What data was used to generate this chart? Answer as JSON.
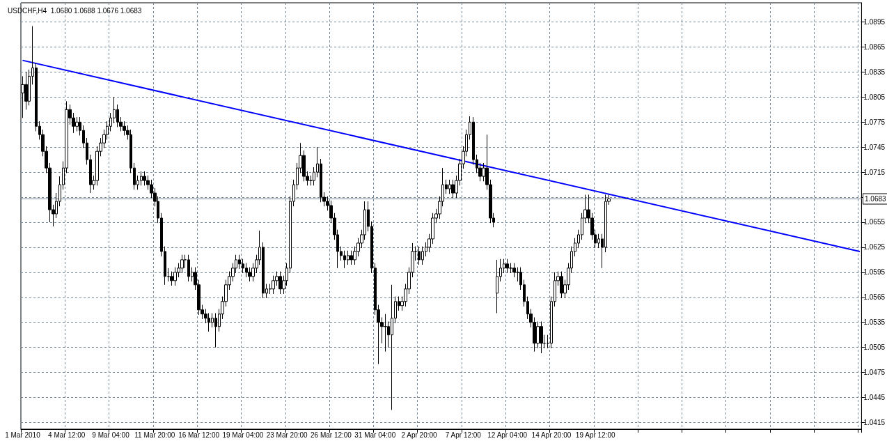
{
  "chart_data": {
    "type": "candlestick",
    "title": "USDCHF,H4  1.0680 1.0688 1.0676 1.0683",
    "categories": [
      "1 Mar 2010",
      null,
      null,
      null,
      null,
      null,
      null,
      null,
      null,
      null,
      null,
      null,
      null,
      "4 Mar 12:00",
      null,
      null,
      null,
      null,
      null,
      null,
      null,
      null,
      null,
      null,
      null,
      null,
      "9 Mar 04:00",
      null,
      null,
      null,
      null,
      null,
      null,
      null,
      null,
      null,
      null,
      null,
      null,
      "11 Mar 20:00",
      null,
      null,
      null,
      null,
      null,
      null,
      null,
      null,
      null,
      null,
      null,
      null,
      "16 Mar 12:00",
      null,
      null,
      null,
      null,
      null,
      null,
      null,
      null,
      null,
      null,
      null,
      null,
      "19 Mar 04:00",
      null,
      null,
      null,
      null,
      null,
      null,
      null,
      null,
      null,
      null,
      null,
      null,
      "23 Mar 20:00",
      null,
      null,
      null,
      null,
      null,
      null,
      null,
      null,
      null,
      null,
      null,
      null,
      "26 Mar 12:00",
      null,
      null,
      null,
      null,
      null,
      null,
      null,
      null,
      null,
      null,
      null,
      null,
      "31 Mar 04:00",
      null,
      null,
      null,
      null,
      null,
      null,
      null,
      null,
      null,
      null,
      null,
      null,
      "2 Apr 20:00",
      null,
      null,
      null,
      null,
      null,
      null,
      null,
      null,
      null,
      null,
      null,
      null,
      "7 Apr 12:00",
      null,
      null,
      null,
      null,
      null,
      null,
      null,
      null,
      null,
      null,
      null,
      null,
      "12 Apr 04:00",
      null,
      null,
      null,
      null,
      null,
      null,
      null,
      null,
      null,
      null,
      null,
      null,
      "14 Apr 20:00",
      null,
      null,
      null,
      null,
      null,
      null,
      null,
      null,
      null,
      null,
      null,
      null,
      "19 Apr 12:00",
      null,
      null,
      null,
      null,
      null,
      null,
      null,
      null,
      null,
      null,
      null,
      null,
      null,
      null,
      null,
      null,
      null,
      null,
      null,
      null,
      null,
      null,
      null,
      null,
      null,
      null,
      null,
      null,
      null,
      null,
      null,
      null,
      null,
      null,
      null,
      null,
      null,
      null,
      null,
      null,
      null,
      null,
      null,
      null,
      null,
      null,
      null,
      null,
      null,
      null,
      null,
      null,
      null,
      null,
      null,
      null,
      null,
      null,
      null,
      null,
      null,
      null,
      null,
      null,
      null,
      null,
      null,
      null,
      null,
      null,
      null,
      null,
      null,
      null,
      null,
      null,
      null,
      null
    ],
    "series": [
      {
        "type": "candlestick",
        "color": "#000000",
        "ohlc": [
          [
            1.081,
            1.083,
            1.078,
            1.082
          ],
          [
            1.082,
            1.0835,
            1.079,
            1.08
          ],
          [
            1.08,
            1.0838,
            1.0795,
            1.083
          ],
          [
            1.083,
            1.089,
            1.082,
            1.084
          ],
          [
            1.084,
            1.0846,
            1.0764,
            1.077
          ],
          [
            1.077,
            1.0776,
            1.0754,
            1.076
          ],
          [
            1.076,
            1.0766,
            1.0734,
            1.074
          ],
          [
            1.074,
            1.0746,
            1.0714,
            1.072
          ],
          [
            1.072,
            1.0726,
            1.0655,
            1.067
          ],
          [
            1.067,
            1.0676,
            1.065,
            1.0665
          ],
          [
            1.0665,
            1.069,
            1.066,
            1.068
          ],
          [
            1.068,
            1.071,
            1.0674,
            1.07
          ],
          [
            1.07,
            1.0728,
            1.0694,
            1.072
          ],
          [
            1.072,
            1.08,
            1.0714,
            1.079
          ],
          [
            1.079,
            1.0796,
            1.0772,
            1.078
          ],
          [
            1.078,
            1.0786,
            1.0762,
            1.077
          ],
          [
            1.077,
            1.0781,
            1.0764,
            1.0775
          ],
          [
            1.0775,
            1.0781,
            1.0759,
            1.0765
          ],
          [
            1.0765,
            1.0771,
            1.0744,
            1.075
          ],
          [
            1.075,
            1.0756,
            1.0724,
            1.073
          ],
          [
            1.073,
            1.0736,
            1.069,
            1.07
          ],
          [
            1.07,
            1.0711,
            1.0694,
            1.0705
          ],
          [
            1.0705,
            1.0746,
            1.0699,
            1.074
          ],
          [
            1.074,
            1.0756,
            1.0734,
            1.075
          ],
          [
            1.075,
            1.0766,
            1.0744,
            1.076
          ],
          [
            1.076,
            1.0776,
            1.0754,
            1.077
          ],
          [
            1.077,
            1.0786,
            1.0764,
            1.078
          ],
          [
            1.078,
            1.0805,
            1.0774,
            1.079
          ],
          [
            1.079,
            1.0796,
            1.0769,
            1.0775
          ],
          [
            1.0775,
            1.0781,
            1.0764,
            1.077
          ],
          [
            1.077,
            1.0776,
            1.0759,
            1.0765
          ],
          [
            1.0765,
            1.0771,
            1.0754,
            1.076
          ],
          [
            1.076,
            1.0766,
            1.0714,
            1.072
          ],
          [
            1.072,
            1.0726,
            1.0694,
            1.07
          ],
          [
            1.07,
            1.0711,
            1.0694,
            1.0705
          ],
          [
            1.0705,
            1.0716,
            1.0699,
            1.071
          ],
          [
            1.071,
            1.0716,
            1.0699,
            1.0705
          ],
          [
            1.0705,
            1.0711,
            1.0694,
            1.07
          ],
          [
            1.07,
            1.0706,
            1.0684,
            1.069
          ],
          [
            1.069,
            1.0696,
            1.0674,
            1.068
          ],
          [
            1.068,
            1.0686,
            1.0654,
            1.066
          ],
          [
            1.066,
            1.0666,
            1.0614,
            1.062
          ],
          [
            1.062,
            1.0626,
            1.058,
            1.059
          ],
          [
            1.059,
            1.06,
            1.0584,
            1.059
          ],
          [
            1.059,
            1.0596,
            1.0579,
            1.0585
          ],
          [
            1.0585,
            1.0601,
            1.0579,
            1.0595
          ],
          [
            1.0595,
            1.0606,
            1.0589,
            1.06
          ],
          [
            1.06,
            1.0616,
            1.0594,
            1.061
          ],
          [
            1.061,
            1.0616,
            1.06,
            1.061
          ],
          [
            1.061,
            1.0616,
            1.0584,
            1.059
          ],
          [
            1.059,
            1.0601,
            1.0584,
            1.0595
          ],
          [
            1.0595,
            1.0601,
            1.0574,
            1.058
          ],
          [
            1.058,
            1.0586,
            1.0544,
            1.055
          ],
          [
            1.055,
            1.0556,
            1.0539,
            1.0545
          ],
          [
            1.0545,
            1.0551,
            1.0534,
            1.054
          ],
          [
            1.054,
            1.0546,
            1.0524,
            1.0535
          ],
          [
            1.0535,
            1.0546,
            1.0529,
            1.054
          ],
          [
            1.054,
            1.0546,
            1.0505,
            1.053
          ],
          [
            1.053,
            1.0551,
            1.0524,
            1.0545
          ],
          [
            1.0545,
            1.0566,
            1.0539,
            1.056
          ],
          [
            1.056,
            1.0586,
            1.0554,
            1.058
          ],
          [
            1.058,
            1.0596,
            1.0574,
            1.059
          ],
          [
            1.059,
            1.0606,
            1.0584,
            1.06
          ],
          [
            1.06,
            1.0616,
            1.0594,
            1.061
          ],
          [
            1.061,
            1.0616,
            1.0599,
            1.0605
          ],
          [
            1.0605,
            1.0611,
            1.0594,
            1.06
          ],
          [
            1.06,
            1.0606,
            1.0589,
            1.0595
          ],
          [
            1.0595,
            1.0601,
            1.0584,
            1.059
          ],
          [
            1.059,
            1.0606,
            1.0584,
            1.06
          ],
          [
            1.06,
            1.0616,
            1.0594,
            1.061
          ],
          [
            1.061,
            1.0645,
            1.0604,
            1.0625
          ],
          [
            1.0625,
            1.0631,
            1.0564,
            1.057
          ],
          [
            1.057,
            1.0581,
            1.0564,
            1.0575
          ],
          [
            1.0575,
            1.0581,
            1.0569,
            1.0575
          ],
          [
            1.0575,
            1.0591,
            1.0569,
            1.0585
          ],
          [
            1.0585,
            1.0596,
            1.0579,
            1.059
          ],
          [
            1.059,
            1.0596,
            1.0569,
            1.0575
          ],
          [
            1.0575,
            1.0591,
            1.0569,
            1.0585
          ],
          [
            1.0585,
            1.0606,
            1.0579,
            1.06
          ],
          [
            1.06,
            1.0686,
            1.0594,
            1.068
          ],
          [
            1.068,
            1.0706,
            1.0674,
            1.07
          ],
          [
            1.07,
            1.0726,
            1.0694,
            1.072
          ],
          [
            1.072,
            1.075,
            1.0714,
            1.0735
          ],
          [
            1.0735,
            1.0741,
            1.0704,
            1.071
          ],
          [
            1.071,
            1.0716,
            1.0699,
            1.0705
          ],
          [
            1.0705,
            1.0711,
            1.0699,
            1.0705
          ],
          [
            1.0705,
            1.0721,
            1.0699,
            1.0715
          ],
          [
            1.0715,
            1.0745,
            1.0709,
            1.0725
          ],
          [
            1.0725,
            1.0731,
            1.0679,
            1.0685
          ],
          [
            1.0685,
            1.0691,
            1.0674,
            1.068
          ],
          [
            1.068,
            1.0686,
            1.0669,
            1.0675
          ],
          [
            1.0675,
            1.0681,
            1.0654,
            1.066
          ],
          [
            1.066,
            1.0666,
            1.0634,
            1.064
          ],
          [
            1.064,
            1.0646,
            1.06,
            1.062
          ],
          [
            1.062,
            1.0626,
            1.0609,
            1.0615
          ],
          [
            1.0615,
            1.0621,
            1.06,
            1.061
          ],
          [
            1.061,
            1.0621,
            1.0604,
            1.0615
          ],
          [
            1.0615,
            1.0621,
            1.0604,
            1.061
          ],
          [
            1.061,
            1.0626,
            1.0604,
            1.062
          ],
          [
            1.062,
            1.0636,
            1.0614,
            1.063
          ],
          [
            1.063,
            1.0646,
            1.0624,
            1.064
          ],
          [
            1.064,
            1.068,
            1.0634,
            1.067
          ],
          [
            1.067,
            1.068,
            1.0644,
            1.065
          ],
          [
            1.065,
            1.0656,
            1.0594,
            1.06
          ],
          [
            1.06,
            1.0606,
            1.0544,
            1.055
          ],
          [
            1.055,
            1.0556,
            1.0485,
            1.0535
          ],
          [
            1.0535,
            1.0541,
            1.051,
            1.053
          ],
          [
            1.053,
            1.0545,
            1.05,
            1.053
          ],
          [
            1.053,
            1.0536,
            1.0505,
            1.052
          ],
          [
            1.052,
            1.058,
            1.043,
            1.054
          ],
          [
            1.054,
            1.0566,
            1.0534,
            1.056
          ],
          [
            1.056,
            1.0566,
            1.0549,
            1.0555
          ],
          [
            1.0555,
            1.0566,
            1.0549,
            1.056
          ],
          [
            1.056,
            1.0581,
            1.0554,
            1.0575
          ],
          [
            1.0575,
            1.0601,
            1.0569,
            1.0595
          ],
          [
            1.0595,
            1.063,
            1.0589,
            1.062
          ],
          [
            1.062,
            1.0626,
            1.0609,
            1.062
          ],
          [
            1.062,
            1.0626,
            1.0604,
            1.061
          ],
          [
            1.061,
            1.0626,
            1.0604,
            1.062
          ],
          [
            1.062,
            1.0631,
            1.0614,
            1.0625
          ],
          [
            1.0625,
            1.0641,
            1.0619,
            1.0635
          ],
          [
            1.0635,
            1.0666,
            1.0629,
            1.066
          ],
          [
            1.066,
            1.0671,
            1.0654,
            1.0665
          ],
          [
            1.0665,
            1.0686,
            1.0659,
            1.068
          ],
          [
            1.068,
            1.072,
            1.0674,
            1.07
          ],
          [
            1.07,
            1.0706,
            1.0689,
            1.0695
          ],
          [
            1.0695,
            1.0706,
            1.0689,
            1.07
          ],
          [
            1.07,
            1.0706,
            1.0684,
            1.069
          ],
          [
            1.069,
            1.0711,
            1.0684,
            1.0705
          ],
          [
            1.0705,
            1.0731,
            1.0699,
            1.0725
          ],
          [
            1.0725,
            1.0746,
            1.0719,
            1.074
          ],
          [
            1.074,
            1.0766,
            1.0734,
            1.076
          ],
          [
            1.076,
            1.0782,
            1.0754,
            1.0775
          ],
          [
            1.0775,
            1.0781,
            1.0724,
            1.073
          ],
          [
            1.073,
            1.0736,
            1.0714,
            1.072
          ],
          [
            1.072,
            1.0726,
            1.0704,
            1.071
          ],
          [
            1.071,
            1.0726,
            1.0704,
            1.072
          ],
          [
            1.072,
            1.076,
            1.0694,
            1.07
          ],
          [
            1.07,
            1.0706,
            1.0654,
            1.066
          ],
          [
            1.066,
            1.0666,
            1.0649,
            1.0655
          ],
          [
            1.057,
            1.061,
            1.0546,
            1.059
          ],
          [
            1.059,
            1.0611,
            1.0584,
            1.06
          ],
          [
            1.06,
            1.0611,
            1.0594,
            1.0605
          ],
          [
            1.0605,
            1.0611,
            1.0594,
            1.06
          ],
          [
            1.06,
            1.0606,
            1.0594,
            1.06
          ],
          [
            1.06,
            1.0606,
            1.0589,
            1.0595
          ],
          [
            1.0595,
            1.0601,
            1.0584,
            1.0595
          ],
          [
            1.0595,
            1.0601,
            1.0574,
            1.058
          ],
          [
            1.058,
            1.0586,
            1.0554,
            1.056
          ],
          [
            1.056,
            1.0566,
            1.0539,
            1.0545
          ],
          [
            1.0545,
            1.0551,
            1.0529,
            1.0535
          ],
          [
            1.0535,
            1.0541,
            1.05,
            1.051
          ],
          [
            1.051,
            1.0536,
            1.0504,
            1.053
          ],
          [
            1.053,
            1.0536,
            1.0498,
            1.051
          ],
          [
            1.051,
            1.052,
            1.0504,
            1.051
          ],
          [
            1.051,
            1.052,
            1.0504,
            1.051
          ],
          [
            1.051,
            1.0566,
            1.0504,
            1.056
          ],
          [
            1.056,
            1.0595,
            1.0554,
            1.0585
          ],
          [
            1.0585,
            1.0596,
            1.0579,
            1.059
          ],
          [
            1.059,
            1.0596,
            1.0564,
            1.057
          ],
          [
            1.057,
            1.0586,
            1.0564,
            1.058
          ],
          [
            1.058,
            1.0606,
            1.0574,
            1.06
          ],
          [
            1.06,
            1.0626,
            1.0594,
            1.062
          ],
          [
            1.062,
            1.0636,
            1.0614,
            1.063
          ],
          [
            1.063,
            1.0646,
            1.0624,
            1.064
          ],
          [
            1.064,
            1.0666,
            1.0634,
            1.066
          ],
          [
            1.066,
            1.0688,
            1.0654,
            1.067
          ],
          [
            1.067,
            1.0688,
            1.0654,
            1.066
          ],
          [
            1.066,
            1.0666,
            1.0634,
            1.064
          ],
          [
            1.064,
            1.0646,
            1.0624,
            1.063
          ],
          [
            1.063,
            1.0641,
            1.0624,
            1.0635
          ],
          [
            1.0635,
            1.0641,
            1.06,
            1.0625
          ],
          [
            1.0625,
            1.0688,
            1.0619,
            1.068
          ],
          [
            1.068,
            1.0688,
            1.0676,
            1.0683
          ],
          null,
          null,
          null,
          null,
          null,
          null,
          null,
          null,
          null,
          null,
          null,
          null,
          null,
          null,
          null,
          null,
          null,
          null,
          null,
          null,
          null,
          null,
          null,
          null,
          null,
          null,
          null,
          null,
          null,
          null,
          null,
          null,
          null,
          null,
          null,
          null,
          null,
          null,
          null,
          null,
          null,
          null,
          null,
          null,
          null,
          null,
          null,
          null,
          null,
          null,
          null,
          null,
          null,
          null,
          null,
          null,
          null,
          null,
          null,
          null,
          null,
          null,
          null,
          null,
          null,
          null,
          null,
          null,
          null,
          null,
          null,
          null,
          null,
          null
        ]
      },
      {
        "type": "line",
        "color": "#0000ff",
        "values": [
          1.0849,
          null,
          null,
          null,
          null,
          null,
          null,
          null,
          null,
          null,
          null,
          null,
          null,
          null,
          null,
          null,
          null,
          null,
          null,
          null,
          null,
          null,
          null,
          null,
          null,
          null,
          null,
          null,
          null,
          null,
          null,
          null,
          null,
          null,
          null,
          null,
          null,
          null,
          null,
          null,
          null,
          null,
          null,
          null,
          null,
          null,
          null,
          null,
          null,
          null,
          null,
          null,
          null,
          null,
          null,
          null,
          null,
          null,
          null,
          null,
          null,
          null,
          null,
          null,
          null,
          null,
          null,
          null,
          null,
          null,
          null,
          null,
          null,
          null,
          null,
          null,
          null,
          null,
          null,
          null,
          null,
          null,
          null,
          null,
          null,
          null,
          null,
          null,
          null,
          null,
          null,
          null,
          null,
          null,
          null,
          null,
          null,
          null,
          null,
          null,
          null,
          null,
          null,
          null,
          null,
          null,
          null,
          null,
          null,
          null,
          null,
          null,
          null,
          null,
          null,
          null,
          null,
          null,
          null,
          null,
          null,
          null,
          null,
          null,
          null,
          null,
          null,
          null,
          null,
          null,
          null,
          null,
          null,
          null,
          null,
          null,
          null,
          null,
          null,
          null,
          null,
          null,
          null,
          null,
          null,
          null,
          null,
          null,
          null,
          null,
          null,
          null,
          null,
          null,
          null,
          null,
          null,
          null,
          null,
          null,
          null,
          null,
          null,
          null,
          null,
          null,
          null,
          null,
          null,
          null,
          null,
          null,
          null,
          null,
          null,
          null,
          null,
          null,
          null,
          null,
          null,
          null,
          null,
          null,
          null,
          null,
          null,
          null,
          null,
          null,
          null,
          null,
          null,
          null,
          null,
          null,
          null,
          null,
          null,
          null,
          null,
          null,
          null,
          null,
          null,
          null,
          null,
          null,
          null,
          null,
          null,
          null,
          null,
          null,
          null,
          null,
          null,
          null,
          null,
          null,
          null,
          null,
          null,
          null,
          null,
          null,
          null,
          null,
          null,
          null,
          null,
          null,
          null,
          null,
          null,
          null,
          null,
          null,
          null,
          null,
          null,
          null,
          null,
          null,
          null,
          null,
          null,
          1.062
        ]
      }
    ],
    "ylim": [
      1.0407,
      1.0918
    ],
    "yticks": [
      1.0415,
      1.0445,
      1.0475,
      1.0505,
      1.0535,
      1.0565,
      1.0595,
      1.0625,
      1.0655,
      {
        "value": 1.0685,
        "label": null
      },
      1.0715,
      1.0745,
      1.0775,
      1.0805,
      1.0835,
      1.0865,
      1.0895
    ],
    "ref_lines": [
      {
        "axis": "y",
        "value": 1.0683,
        "label": "1.0683",
        "color": "#778899"
      }
    ],
    "grid": true
  }
}
